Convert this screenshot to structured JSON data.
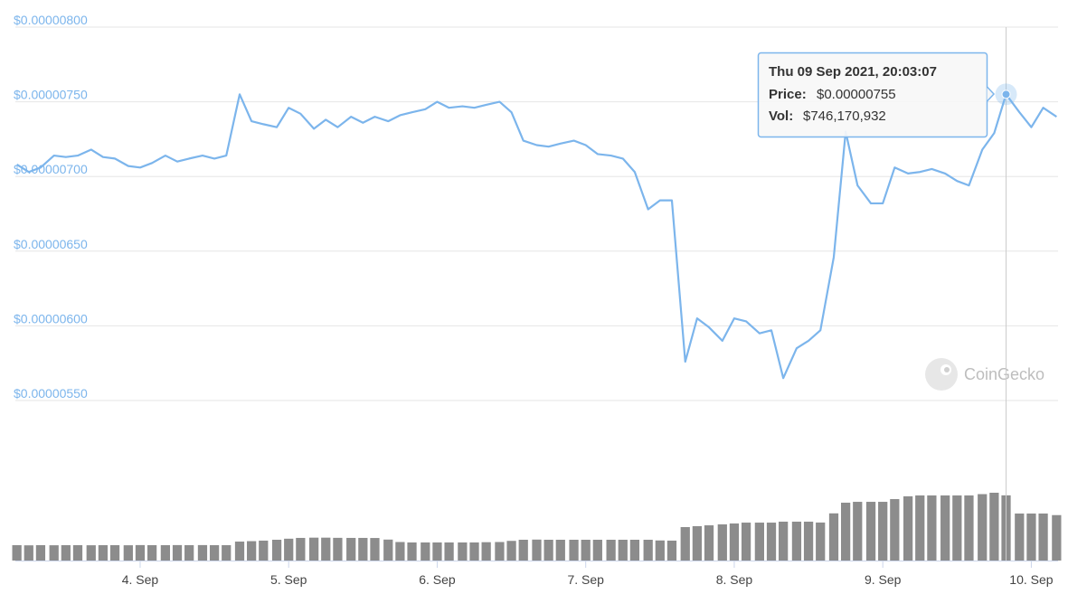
{
  "chart_data": [
    {
      "type": "line",
      "color": "#7cb5ec",
      "grid": true,
      "xlim": [
        3.16,
        10.18
      ],
      "ylim": [
        5.5e-06,
        8e-06
      ],
      "yticks": [
        {
          "value": 5.5e-06,
          "label": "$0.00000550"
        },
        {
          "value": 6e-06,
          "label": "$0.00000600"
        },
        {
          "value": 6.5e-06,
          "label": "$0.00000650"
        },
        {
          "value": 7e-06,
          "label": "$0.00000700"
        },
        {
          "value": 7.5e-06,
          "label": "$0.00000750"
        },
        {
          "value": 8e-06,
          "label": "$0.00000800"
        }
      ],
      "x": [
        3.17,
        3.25,
        3.33,
        3.42,
        3.5,
        3.58,
        3.67,
        3.75,
        3.83,
        3.92,
        4.0,
        4.08,
        4.17,
        4.25,
        4.33,
        4.42,
        4.5,
        4.58,
        4.67,
        4.75,
        4.83,
        4.92,
        5.0,
        5.08,
        5.17,
        5.25,
        5.33,
        5.42,
        5.5,
        5.58,
        5.67,
        5.75,
        5.83,
        5.92,
        6.0,
        6.08,
        6.17,
        6.25,
        6.33,
        6.42,
        6.5,
        6.58,
        6.67,
        6.75,
        6.83,
        6.92,
        7.0,
        7.08,
        7.17,
        7.25,
        7.33,
        7.42,
        7.5,
        7.58,
        7.67,
        7.75,
        7.83,
        7.92,
        8.0,
        8.08,
        8.17,
        8.25,
        8.33,
        8.42,
        8.5,
        8.58,
        8.67,
        8.75,
        8.83,
        8.92,
        9.0,
        9.08,
        9.17,
        9.25,
        9.33,
        9.42,
        9.5,
        9.58,
        9.67,
        9.75,
        9.83,
        9.92,
        10.0,
        10.08,
        10.17
      ],
      "values": [
        7.08e-06,
        7.03e-06,
        7.06e-06,
        7.14e-06,
        7.13e-06,
        7.14e-06,
        7.18e-06,
        7.13e-06,
        7.12e-06,
        7.07e-06,
        7.06e-06,
        7.09e-06,
        7.14e-06,
        7.1e-06,
        7.12e-06,
        7.14e-06,
        7.12e-06,
        7.14e-06,
        7.55e-06,
        7.37e-06,
        7.35e-06,
        7.33e-06,
        7.46e-06,
        7.42e-06,
        7.32e-06,
        7.38e-06,
        7.33e-06,
        7.4e-06,
        7.36e-06,
        7.4e-06,
        7.37e-06,
        7.41e-06,
        7.43e-06,
        7.45e-06,
        7.5e-06,
        7.46e-06,
        7.47e-06,
        7.46e-06,
        7.48e-06,
        7.5e-06,
        7.43e-06,
        7.24e-06,
        7.21e-06,
        7.2e-06,
        7.22e-06,
        7.24e-06,
        7.21e-06,
        7.15e-06,
        7.14e-06,
        7.12e-06,
        7.03e-06,
        6.78e-06,
        6.84e-06,
        6.84e-06,
        5.76e-06,
        6.05e-06,
        5.99e-06,
        5.9e-06,
        6.05e-06,
        6.03e-06,
        5.95e-06,
        5.97e-06,
        5.65e-06,
        5.85e-06,
        5.9e-06,
        5.97e-06,
        6.46e-06,
        7.3e-06,
        6.94e-06,
        6.82e-06,
        6.82e-06,
        7.06e-06,
        7.02e-06,
        7.03e-06,
        7.05e-06,
        7.02e-06,
        6.97e-06,
        6.94e-06,
        7.18e-06,
        7.29e-06,
        7.55e-06,
        7.43e-06,
        7.33e-06,
        7.46e-06,
        7.4e-06
      ],
      "tooltip": {
        "title": "Thu 09 Sep 2021, 20:03:07",
        "price_label": "Price:",
        "price": "$0.00000755",
        "vol_label": "Vol:",
        "vol": "$746,170,932"
      },
      "watermark": "CoinGecko"
    },
    {
      "type": "bar",
      "color": "#8c8c8c",
      "xlim": [
        3.16,
        10.18
      ],
      "ylim": [
        0,
        1500000000
      ],
      "xticks": [
        {
          "value": 4,
          "label": "4. Sep"
        },
        {
          "value": 5,
          "label": "5. Sep"
        },
        {
          "value": 6,
          "label": "6. Sep"
        },
        {
          "value": 7,
          "label": "7. Sep"
        },
        {
          "value": 8,
          "label": "8. Sep"
        },
        {
          "value": 9,
          "label": "9. Sep"
        },
        {
          "value": 10,
          "label": "10. Sep"
        }
      ],
      "x": [
        3.17,
        3.25,
        3.33,
        3.42,
        3.5,
        3.58,
        3.67,
        3.75,
        3.83,
        3.92,
        4.0,
        4.08,
        4.17,
        4.25,
        4.33,
        4.42,
        4.5,
        4.58,
        4.67,
        4.75,
        4.83,
        4.92,
        5.0,
        5.08,
        5.17,
        5.25,
        5.33,
        5.42,
        5.5,
        5.58,
        5.67,
        5.75,
        5.83,
        5.92,
        6.0,
        6.08,
        6.17,
        6.25,
        6.33,
        6.42,
        6.5,
        6.58,
        6.67,
        6.75,
        6.83,
        6.92,
        7.0,
        7.08,
        7.17,
        7.25,
        7.33,
        7.42,
        7.5,
        7.58,
        7.67,
        7.75,
        7.83,
        7.92,
        8.0,
        8.08,
        8.17,
        8.25,
        8.33,
        8.42,
        8.5,
        8.58,
        8.67,
        8.75,
        8.83,
        8.92,
        9.0,
        9.08,
        9.17,
        9.25,
        9.33,
        9.42,
        9.5,
        9.58,
        9.67,
        9.75,
        9.83,
        9.92,
        10.0,
        10.08,
        10.17
      ],
      "values": [
        176000000,
        174000000,
        176000000,
        175000000,
        176000000,
        176000000,
        175000000,
        176000000,
        176000000,
        175000000,
        177000000,
        176000000,
        176000000,
        177000000,
        176000000,
        177000000,
        176000000,
        176000000,
        217000000,
        222000000,
        228000000,
        238000000,
        250000000,
        259000000,
        262000000,
        262000000,
        260000000,
        259000000,
        259000000,
        258000000,
        240000000,
        212000000,
        207000000,
        207000000,
        207000000,
        207000000,
        207000000,
        207000000,
        210000000,
        212000000,
        225000000,
        238000000,
        240000000,
        238000000,
        238000000,
        238000000,
        238000000,
        238000000,
        238000000,
        238000000,
        238000000,
        238000000,
        230000000,
        228000000,
        383000000,
        393000000,
        403000000,
        414000000,
        424000000,
        434000000,
        434000000,
        434000000,
        445000000,
        445000000,
        445000000,
        435000000,
        540000000,
        662000000,
        672000000,
        672000000,
        672000000,
        703000000,
        735000000,
        745000000,
        745000000,
        745000000,
        745000000,
        745000000,
        760000000,
        776000000,
        746170932,
        538000000,
        538000000,
        538000000,
        520000000
      ]
    }
  ]
}
